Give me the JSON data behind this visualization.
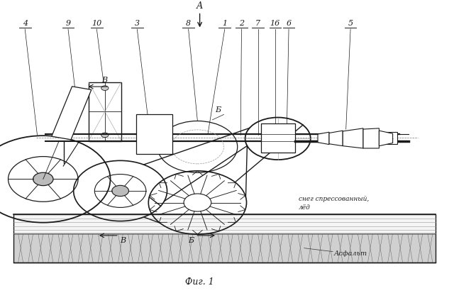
{
  "title": "Фиг. 1",
  "bg_color": "#ffffff",
  "line_color": "#1a1a1a",
  "figsize": [
    6.4,
    4.2
  ],
  "dpi": 100,
  "asphalt_label": "Асфальт",
  "snow_label": "снег спрессованный,\nлёд",
  "section_A": "А",
  "section_B": "В",
  "section_Б": "Б"
}
